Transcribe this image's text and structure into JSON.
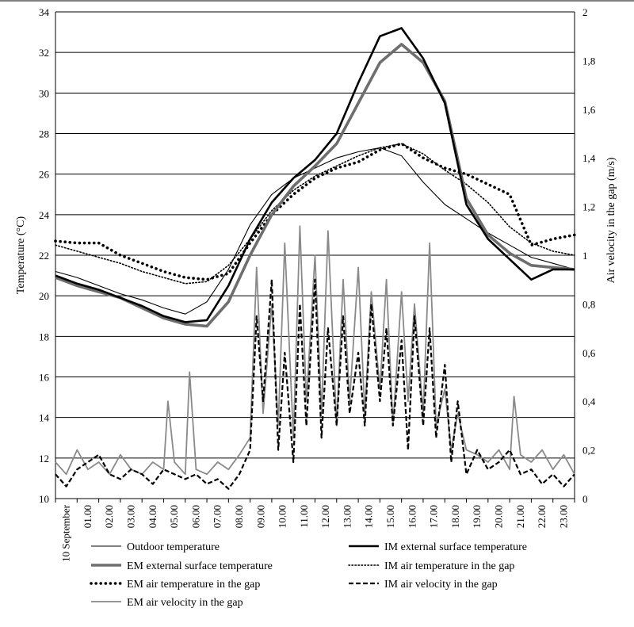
{
  "chart_data": {
    "type": "line",
    "title": "",
    "ylabel": "Temperature (°C)",
    "y2label": "Air velocity in the gap (m/s)",
    "ylim": [
      10,
      34
    ],
    "y2lim": [
      0,
      2
    ],
    "grid": true,
    "legend_position": "bottom",
    "x_categories": [
      "10 September",
      "01.00",
      "02.00",
      "03.00",
      "04.00",
      "05.00",
      "06.00",
      "07.00",
      "08.00",
      "09.00",
      "10.00",
      "11.00",
      "12.00",
      "13.00",
      "14.00",
      "15.00",
      "16.00",
      "17.00",
      "18.00",
      "19.00",
      "20.00",
      "21.00",
      "22.00",
      "23.00"
    ],
    "y_ticks": [
      "10",
      "12",
      "14",
      "16",
      "18",
      "20",
      "22",
      "24",
      "26",
      "28",
      "30",
      "32",
      "34"
    ],
    "y2_ticks": [
      "0",
      "0,2",
      "0,4",
      "0,6",
      "0,8",
      "1",
      "1,2",
      "1,4",
      "1,6",
      "1,8",
      "2"
    ],
    "series": [
      {
        "name": "Outdoor temperature",
        "axis": "left",
        "style": "thin",
        "color": "#000000",
        "x": [
          0,
          1,
          2,
          3,
          4,
          5,
          6,
          7,
          8,
          9,
          10,
          11,
          12,
          13,
          14,
          15,
          16,
          17,
          18,
          19,
          20,
          21,
          22,
          23,
          24
        ],
        "values": [
          21.2,
          20.9,
          20.5,
          20.1,
          19.8,
          19.4,
          19.1,
          19.7,
          21.3,
          23.5,
          25.0,
          25.8,
          26.3,
          26.8,
          27.1,
          27.3,
          26.9,
          25.6,
          24.5,
          23.8,
          23.1,
          22.5,
          21.9,
          21.6,
          21.3
        ]
      },
      {
        "name": "IM external surface temperature",
        "axis": "left",
        "style": "thick-black",
        "color": "#000000",
        "x": [
          0,
          1,
          2,
          3,
          4,
          5,
          6,
          7,
          8,
          9,
          10,
          11,
          12,
          13,
          14,
          15,
          16,
          17,
          18,
          19,
          20,
          21,
          22,
          23,
          24
        ],
        "values": [
          21.0,
          20.6,
          20.3,
          19.9,
          19.5,
          19.0,
          18.7,
          18.8,
          20.5,
          22.8,
          24.6,
          25.8,
          26.7,
          28.0,
          30.5,
          32.8,
          33.2,
          31.7,
          29.5,
          24.5,
          22.8,
          21.8,
          20.8,
          21.3,
          21.3
        ]
      },
      {
        "name": "EM external surface temperature",
        "axis": "left",
        "style": "thick-gray",
        "color": "#707070",
        "x": [
          0,
          1,
          2,
          3,
          4,
          5,
          6,
          7,
          8,
          9,
          10,
          11,
          12,
          13,
          14,
          15,
          16,
          17,
          18,
          19,
          20,
          21,
          22,
          23,
          24
        ],
        "values": [
          20.9,
          20.5,
          20.2,
          19.9,
          19.4,
          18.9,
          18.6,
          18.5,
          19.7,
          22.0,
          24.0,
          25.4,
          26.4,
          27.5,
          29.5,
          31.5,
          32.4,
          31.5,
          29.6,
          24.8,
          23.0,
          22.1,
          21.5,
          21.4,
          21.3
        ]
      },
      {
        "name": "IM air temperature in the gap",
        "axis": "left",
        "style": "dotted-fine",
        "color": "#000000",
        "x": [
          0,
          1,
          2,
          3,
          4,
          5,
          6,
          7,
          8,
          9,
          10,
          11,
          12,
          13,
          14,
          15,
          16,
          17,
          18,
          19,
          20,
          21,
          22,
          23,
          24
        ],
        "values": [
          22.5,
          22.2,
          21.9,
          21.6,
          21.2,
          20.9,
          20.6,
          20.7,
          21.5,
          22.8,
          24.2,
          25.2,
          25.9,
          26.4,
          26.9,
          27.3,
          27.5,
          27.0,
          26.2,
          25.5,
          24.6,
          23.4,
          22.6,
          22.2,
          22.0
        ]
      },
      {
        "name": "EM air temperature in the gap",
        "axis": "left",
        "style": "dotted-heavy",
        "color": "#000000",
        "x": [
          0,
          1,
          2,
          3,
          4,
          5,
          6,
          7,
          8,
          9,
          10,
          11,
          12,
          13,
          14,
          15,
          16,
          17,
          18,
          19,
          20,
          21,
          22,
          23,
          24
        ],
        "values": [
          22.7,
          22.6,
          22.6,
          22.0,
          21.6,
          21.2,
          20.9,
          20.8,
          21.1,
          22.6,
          24.0,
          25.0,
          25.8,
          26.3,
          26.6,
          27.2,
          27.5,
          26.8,
          26.3,
          26.0,
          25.5,
          25.0,
          22.5,
          22.8,
          23.0
        ]
      },
      {
        "name": "IM air velocity in the gap",
        "axis": "right",
        "style": "dashed",
        "color": "#000000",
        "x": [
          0,
          0.5,
          1,
          1.5,
          2,
          2.5,
          3,
          3.5,
          4,
          4.5,
          5,
          5.5,
          6,
          6.5,
          7,
          7.5,
          8,
          8.5,
          9,
          9.3,
          9.6,
          10,
          10.3,
          10.6,
          11,
          11.3,
          11.6,
          12,
          12.3,
          12.6,
          13,
          13.3,
          13.6,
          14,
          14.3,
          14.6,
          15,
          15.3,
          15.6,
          16,
          16.3,
          16.6,
          17,
          17.3,
          17.6,
          18,
          18.3,
          18.6,
          19,
          19.5,
          20,
          20.5,
          21,
          21.5,
          22,
          22.5,
          23,
          23.5,
          24
        ],
        "values": [
          0.1,
          0.05,
          0.12,
          0.15,
          0.18,
          0.1,
          0.08,
          0.12,
          0.1,
          0.06,
          0.12,
          0.1,
          0.08,
          0.1,
          0.06,
          0.08,
          0.04,
          0.1,
          0.2,
          0.75,
          0.4,
          0.9,
          0.2,
          0.6,
          0.15,
          0.8,
          0.3,
          0.9,
          0.25,
          0.7,
          0.3,
          0.75,
          0.35,
          0.6,
          0.3,
          0.8,
          0.4,
          0.7,
          0.3,
          0.65,
          0.2,
          0.75,
          0.3,
          0.7,
          0.25,
          0.55,
          0.15,
          0.4,
          0.1,
          0.2,
          0.12,
          0.15,
          0.2,
          0.1,
          0.12,
          0.06,
          0.1,
          0.05,
          0.1
        ]
      },
      {
        "name": "EM air velocity in the gap",
        "axis": "right",
        "style": "solid-gray",
        "color": "#8a8a8a",
        "x": [
          0,
          0.5,
          1,
          1.5,
          2,
          2.5,
          3,
          3.5,
          4,
          4.5,
          5,
          5.2,
          5.5,
          6,
          6.2,
          6.5,
          7,
          7.5,
          8,
          8.5,
          9,
          9.3,
          9.6,
          10,
          10.3,
          10.6,
          11,
          11.3,
          11.6,
          12,
          12.3,
          12.6,
          13,
          13.3,
          13.6,
          14,
          14.3,
          14.6,
          15,
          15.3,
          15.6,
          16,
          16.3,
          16.6,
          17,
          17.3,
          17.6,
          18,
          18.3,
          18.6,
          19,
          19.5,
          20,
          20.5,
          21,
          21.2,
          21.5,
          22,
          22.5,
          23,
          23.5,
          24
        ],
        "values": [
          0.15,
          0.1,
          0.2,
          0.12,
          0.15,
          0.1,
          0.18,
          0.12,
          0.1,
          0.15,
          0.12,
          0.4,
          0.15,
          0.1,
          0.52,
          0.12,
          0.1,
          0.15,
          0.12,
          0.18,
          0.25,
          0.95,
          0.35,
          0.8,
          0.3,
          1.05,
          0.25,
          1.12,
          0.4,
          1.0,
          0.35,
          1.1,
          0.3,
          0.9,
          0.4,
          0.95,
          0.35,
          0.85,
          0.45,
          0.9,
          0.3,
          0.85,
          0.4,
          0.8,
          0.35,
          1.05,
          0.3,
          0.45,
          0.2,
          0.35,
          0.2,
          0.18,
          0.15,
          0.2,
          0.12,
          0.42,
          0.18,
          0.15,
          0.2,
          0.12,
          0.18,
          0.1
        ]
      }
    ]
  }
}
